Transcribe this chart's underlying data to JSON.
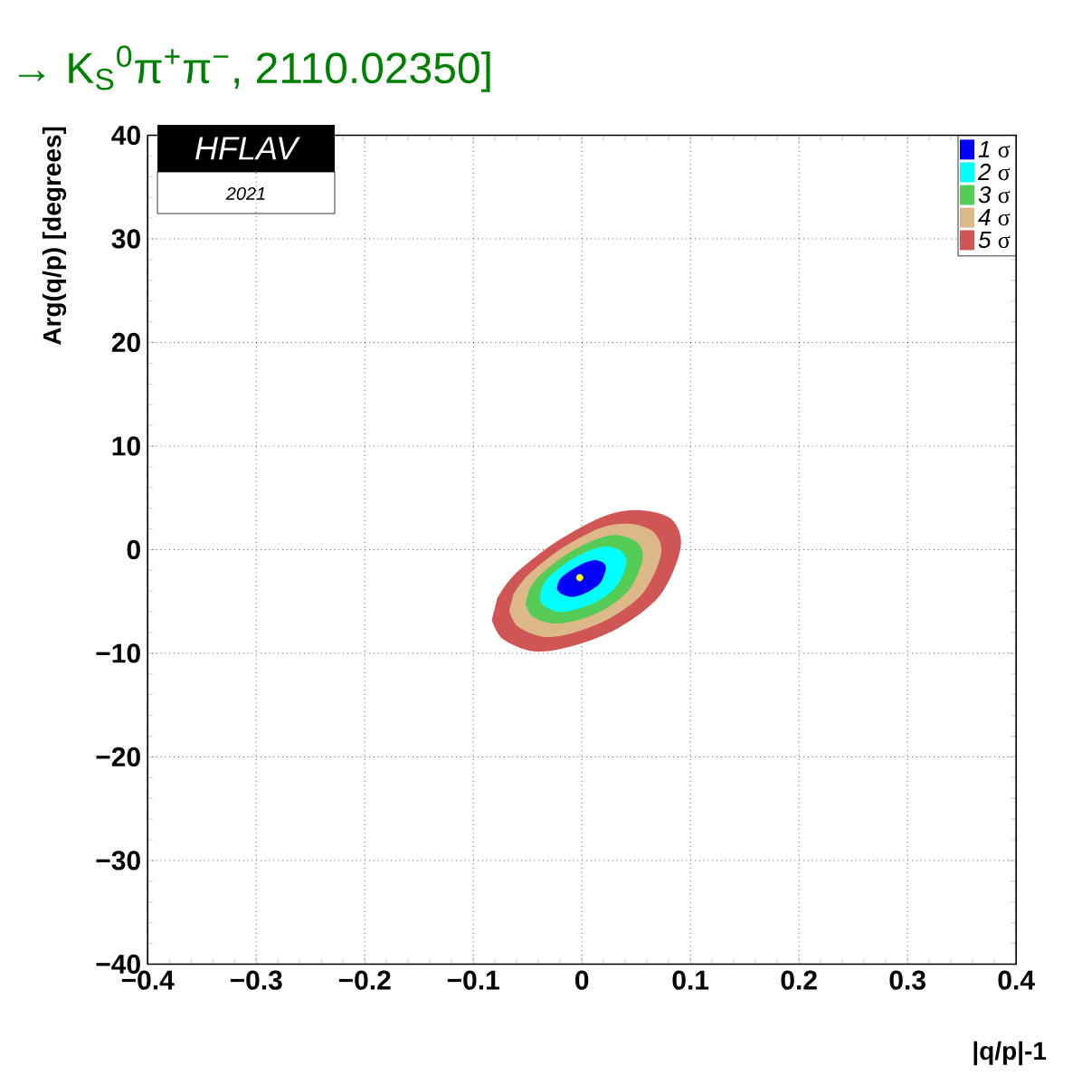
{
  "chart_data": {
    "type": "area",
    "title": "→ K$_{S}$$^{0}$π$^{+}$π$^{−}$, 2110.02350]",
    "xlabel": "|q/p|-1",
    "ylabel": "Arg(q/p) [degrees]",
    "annotations": [
      "HFLAV",
      "2021"
    ],
    "xlim": [
      -0.4,
      0.4
    ],
    "ylim": [
      -40,
      40
    ],
    "xticks": [
      {
        "value": -0.4,
        "label": "−0.4"
      },
      {
        "value": -0.3,
        "label": "−0.3"
      },
      {
        "value": -0.2,
        "label": "−0.2"
      },
      {
        "value": -0.1,
        "label": "−0.1"
      },
      0,
      0.1,
      0.2,
      0.3,
      0.4
    ],
    "yticks": [
      {
        "value": -40,
        "label": "−40"
      },
      {
        "value": -30,
        "label": "−30"
      },
      {
        "value": -20,
        "label": "−20"
      },
      {
        "value": -10,
        "label": "−10"
      },
      0,
      10,
      20,
      30,
      40
    ],
    "grid": true,
    "legend": "top right",
    "series": [
      {
        "name": "*1* σ",
        "color": "#0000ff",
        "x": [
          -0.023,
          -0.02,
          -0.013,
          -0.005,
          0.007,
          0.017,
          0.022,
          0.02,
          0.013,
          0.004,
          -0.007,
          -0.018,
          -0.022
        ],
        "values": [
          -3.8,
          -4.2,
          -4.5,
          -4.5,
          -4.0,
          -3.2,
          -1.9,
          -1.3,
          -1.0,
          -1.2,
          -1.8,
          -2.6,
          -3.2
        ]
      },
      {
        "name": "*2* σ",
        "color": "#00ffff",
        "x": [
          -0.039,
          -0.035,
          -0.022,
          -0.007,
          0.014,
          0.032,
          0.041,
          0.037,
          0.024,
          0.009,
          -0.012,
          -0.03,
          -0.037
        ],
        "values": [
          -4.6,
          -5.4,
          -6.0,
          -5.8,
          -5.0,
          -3.5,
          -1.4,
          -0.2,
          0.3,
          0.0,
          -1.1,
          -2.6,
          -3.6
        ]
      },
      {
        "name": "*3* σ",
        "color": "#55cc55",
        "x": [
          -0.052,
          -0.046,
          -0.029,
          -0.008,
          0.02,
          0.044,
          0.056,
          0.051,
          0.033,
          0.013,
          -0.015,
          -0.039,
          -0.049
        ],
        "values": [
          -5.2,
          -6.4,
          -7.1,
          -6.9,
          -5.8,
          -3.8,
          -0.9,
          0.7,
          1.4,
          1.0,
          -0.5,
          -2.5,
          -4.0
        ]
      },
      {
        "name": "*4* σ",
        "color": "#ddb888",
        "x": [
          -0.067,
          -0.059,
          -0.036,
          -0.01,
          0.026,
          0.057,
          0.073,
          0.066,
          0.044,
          0.017,
          -0.019,
          -0.05,
          -0.063
        ],
        "values": [
          -5.9,
          -7.4,
          -8.4,
          -8.1,
          -6.6,
          -4.1,
          -0.4,
          1.7,
          2.5,
          2.1,
          0.1,
          -2.5,
          -4.3
        ]
      },
      {
        "name": "*5* σ",
        "color": "#d05555",
        "x": [
          -0.083,
          -0.073,
          -0.045,
          -0.012,
          0.033,
          0.072,
          0.091,
          0.083,
          0.055,
          0.022,
          -0.023,
          -0.062,
          -0.078
        ],
        "values": [
          -6.8,
          -8.6,
          -9.8,
          -9.4,
          -7.6,
          -4.4,
          0.2,
          2.9,
          3.8,
          3.3,
          0.8,
          -2.4,
          -4.7
        ]
      },
      {
        "type": "scatter",
        "color": "#ffff00",
        "x": [
          -0.002
        ],
        "values": [
          -2.7
        ]
      }
    ]
  }
}
